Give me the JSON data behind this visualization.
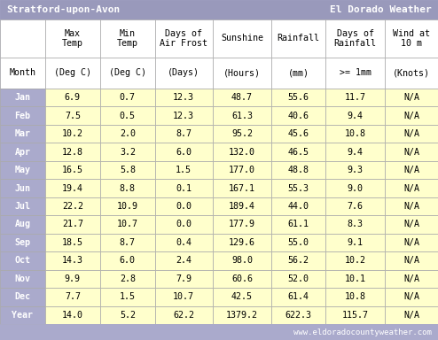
{
  "title_left": "Stratford-upon-Avon",
  "title_right": "El Dorado Weather",
  "title_bg": "#9999bb",
  "title_fg": "white",
  "header1": [
    "",
    "Max\nTemp",
    "Min\nTemp",
    "Days of\nAir Frost",
    "Sunshine",
    "Rainfall",
    "Days of\nRainfall",
    "Wind at\n10 m"
  ],
  "header2": [
    "Month",
    "(Deg C)",
    "(Deg C)",
    "(Days)",
    "(Hours)",
    "(mm)",
    ">= 1mm",
    "(Knots)"
  ],
  "rows": [
    [
      "Jan",
      "6.9",
      "0.7",
      "12.3",
      "48.7",
      "55.6",
      "11.7",
      "N/A"
    ],
    [
      "Feb",
      "7.5",
      "0.5",
      "12.3",
      "61.3",
      "40.6",
      "9.4",
      "N/A"
    ],
    [
      "Mar",
      "10.2",
      "2.0",
      "8.7",
      "95.2",
      "45.6",
      "10.8",
      "N/A"
    ],
    [
      "Apr",
      "12.8",
      "3.2",
      "6.0",
      "132.0",
      "46.5",
      "9.4",
      "N/A"
    ],
    [
      "May",
      "16.5",
      "5.8",
      "1.5",
      "177.0",
      "48.8",
      "9.3",
      "N/A"
    ],
    [
      "Jun",
      "19.4",
      "8.8",
      "0.1",
      "167.1",
      "55.3",
      "9.0",
      "N/A"
    ],
    [
      "Jul",
      "22.2",
      "10.9",
      "0.0",
      "189.4",
      "44.0",
      "7.6",
      "N/A"
    ],
    [
      "Aug",
      "21.7",
      "10.7",
      "0.0",
      "177.9",
      "61.1",
      "8.3",
      "N/A"
    ],
    [
      "Sep",
      "18.5",
      "8.7",
      "0.4",
      "129.6",
      "55.0",
      "9.1",
      "N/A"
    ],
    [
      "Oct",
      "14.3",
      "6.0",
      "2.4",
      "98.0",
      "56.2",
      "10.2",
      "N/A"
    ],
    [
      "Nov",
      "9.9",
      "2.8",
      "7.9",
      "60.6",
      "52.0",
      "10.1",
      "N/A"
    ],
    [
      "Dec",
      "7.7",
      "1.5",
      "10.7",
      "42.5",
      "61.4",
      "10.8",
      "N/A"
    ],
    [
      "Year",
      "14.0",
      "5.2",
      "62.2",
      "1379.2",
      "622.3",
      "115.7",
      "N/A"
    ]
  ],
  "col_month_bg": "#aaaacc",
  "col_month_fg": "white",
  "data_bg": "#ffffcc",
  "header_bg": "#ffffff",
  "footer_text": "www.eldoradocountyweather.com",
  "footer_bg": "#aaaacc",
  "footer_fg": "white",
  "outer_bg": "#aaaacc",
  "border_color": "#aaaaaa",
  "font_size": 7.2,
  "header_font_size": 7.2,
  "title_font_size": 8.0
}
